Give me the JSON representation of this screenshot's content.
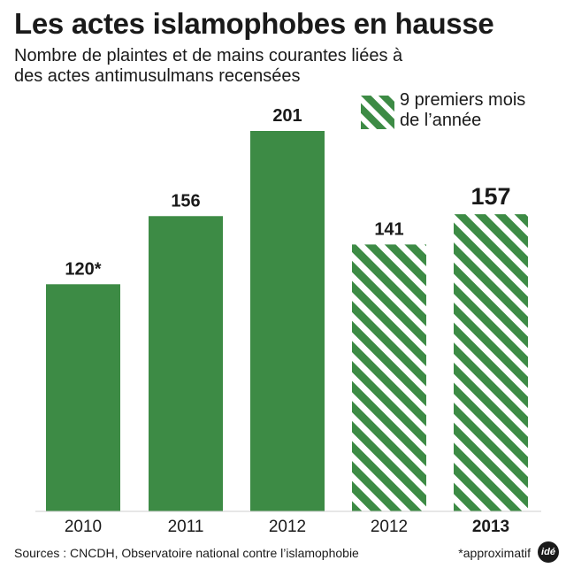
{
  "title": "Les actes islamophobes en hausse",
  "subtitle": "Nombre de plaintes et de mains courantes liées à des actes antimusulmans recensées",
  "legend": {
    "hatched_label": "9 premiers mois de l’année"
  },
  "colors": {
    "bar": "#3d8b45",
    "hatch_stripe": "#3d8b45",
    "hatch_gap": "#ffffff",
    "text": "#1a1a1a"
  },
  "chart_data": {
    "type": "bar",
    "title": "Les actes islamophobes en hausse",
    "xlabel": "",
    "ylabel": "",
    "categories": [
      "2010",
      "2011",
      "2012",
      "2012",
      "2013"
    ],
    "values": [
      120,
      156,
      201,
      141,
      157
    ],
    "data_labels": [
      "120*",
      "156",
      "201",
      "141",
      "157"
    ],
    "hatched": [
      false,
      false,
      false,
      true,
      true
    ],
    "bold": [
      false,
      false,
      false,
      false,
      true
    ],
    "ylim": [
      0,
      201
    ],
    "grid": false,
    "legend_position": "top-right"
  },
  "source": "Sources : CNCDH, Observatoire national contre l’islamophobie",
  "footnote": "*approximatif",
  "logo_text": "idé"
}
